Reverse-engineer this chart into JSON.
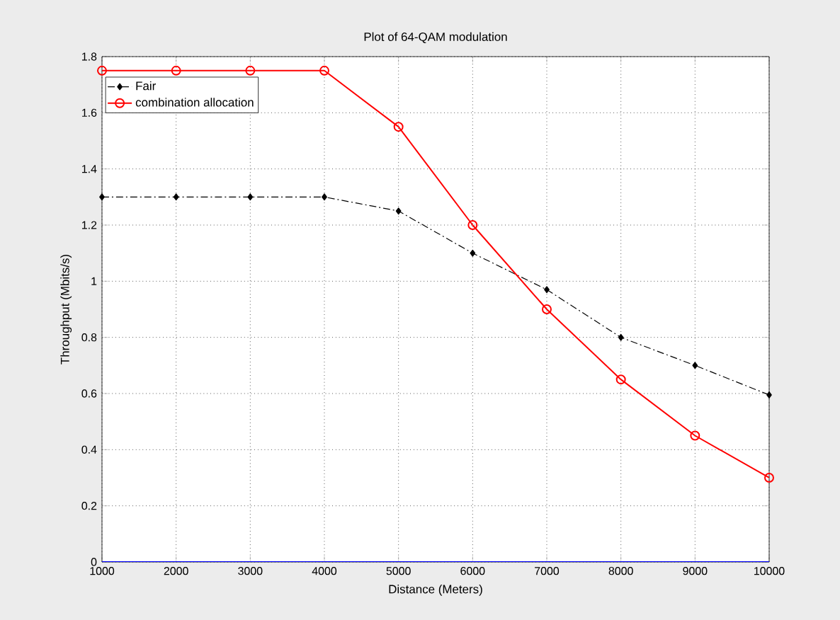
{
  "chart_data": {
    "type": "line",
    "title": "Plot of 64-QAM modulation",
    "xlabel": "Distance (Meters)",
    "ylabel": "Throughput (Mbits/s)",
    "x": [
      1000,
      2000,
      3000,
      4000,
      5000,
      6000,
      7000,
      8000,
      9000,
      10000
    ],
    "series": [
      {
        "name": "Fair",
        "color": "#000000",
        "marker": "diamond",
        "line_style": "dashed",
        "values": [
          1.3,
          1.3,
          1.3,
          1.3,
          1.25,
          1.1,
          0.97,
          0.8,
          0.7,
          0.595
        ]
      },
      {
        "name": "combination allocation",
        "color": "#ff0000",
        "marker": "circle",
        "line_style": "solid",
        "values": [
          1.75,
          1.75,
          1.75,
          1.75,
          1.55,
          1.2,
          0.9,
          0.65,
          0.45,
          0.3
        ]
      },
      {
        "color": "#0000ff",
        "marker": "none",
        "line_style": "solid",
        "values": [
          0,
          0,
          0,
          0,
          0,
          0,
          0,
          0,
          0,
          0
        ]
      }
    ],
    "xlim": [
      1000,
      10000
    ],
    "xticks": [
      1000,
      2000,
      3000,
      4000,
      5000,
      6000,
      7000,
      8000,
      9000,
      10000
    ],
    "ylim": [
      0,
      1.8
    ],
    "yticks": [
      0,
      0.2,
      0.4,
      0.6,
      0.8,
      1,
      1.2,
      1.4,
      1.6,
      1.8
    ],
    "grid": true,
    "legend": "top left"
  }
}
